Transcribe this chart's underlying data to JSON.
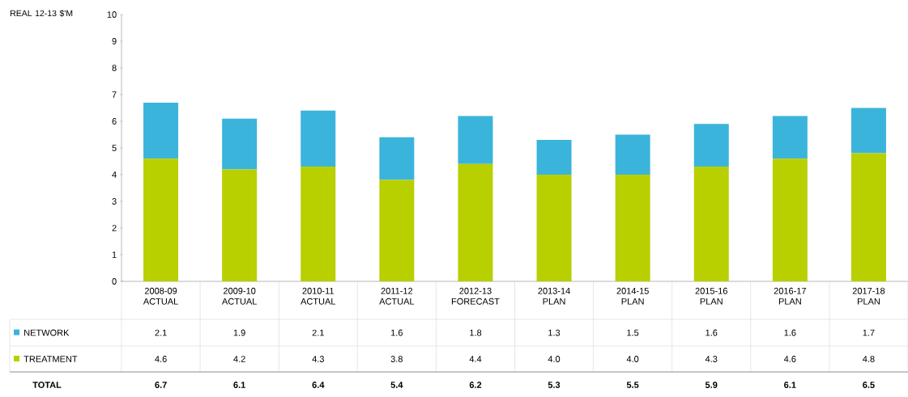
{
  "chart_data": {
    "type": "bar",
    "stacked": true,
    "ylabel": "REAL 12-13 $'M",
    "categories": [
      "2008-09 ACTUAL",
      "2009-10 ACTUAL",
      "2010-11 ACTUAL",
      "2011-12 ACTUAL",
      "2012-13 FORECAST",
      "2013-14 PLAN",
      "2014-15 PLAN",
      "2015-16 PLAN",
      "2016-17 PLAN",
      "2017-18 PLAN"
    ],
    "series": [
      {
        "name": "TREATMENT",
        "color": "#b8cf00",
        "values": [
          4.6,
          4.2,
          4.3,
          3.8,
          4.4,
          4.0,
          4.0,
          4.3,
          4.6,
          4.8
        ],
        "value_labels": [
          "4.6",
          "4.2",
          "4.3",
          "3.8",
          "4.4",
          "4.0",
          "4.0",
          "4.3",
          "4.6",
          "4.8"
        ]
      },
      {
        "name": "NETWORK",
        "color": "#3bb4dc",
        "values": [
          2.1,
          1.9,
          2.1,
          1.6,
          1.8,
          1.3,
          1.5,
          1.6,
          1.6,
          1.7
        ],
        "value_labels": [
          "2.1",
          "1.9",
          "2.1",
          "1.6",
          "1.8",
          "1.3",
          "1.5",
          "1.6",
          "1.6",
          "1.7"
        ]
      }
    ],
    "annotations": [
      "TOTAL",
      "6.7",
      "6.1",
      "6.4",
      "5.4",
      "6.2",
      "5.3",
      "5.5",
      "5.9",
      "6.1",
      "6.5"
    ],
    "ylim": [
      0,
      10
    ],
    "yticks": [
      0,
      1,
      2,
      3,
      4,
      5,
      6,
      7,
      8,
      9,
      10
    ],
    "grid": false,
    "legend": "bottom left"
  }
}
